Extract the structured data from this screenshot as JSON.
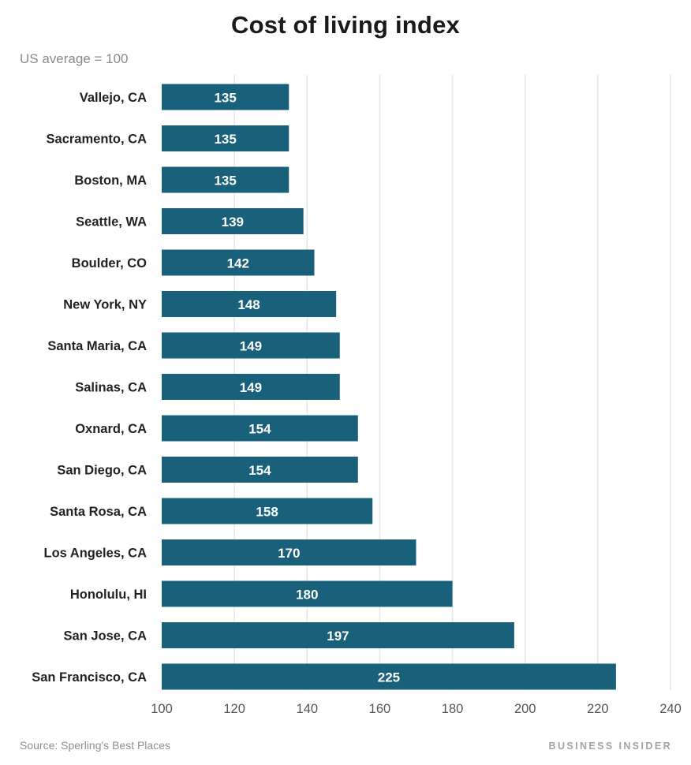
{
  "header": {
    "title": "Cost of living index",
    "subtitle": "US average = 100"
  },
  "footer": {
    "source": "Source: Sperling's Best Places",
    "brand": "BUSINESS INSIDER"
  },
  "colors": {
    "bar": "#19607a",
    "grid": "#e6e6e6",
    "value_text": "#ffffff"
  },
  "chart_data": {
    "type": "bar",
    "orientation": "horizontal",
    "title": "Cost of living index",
    "subtitle": "US average = 100",
    "xlabel": "",
    "ylabel": "",
    "xlim": [
      100,
      240
    ],
    "ticks": [
      100,
      120,
      140,
      160,
      180,
      200,
      220,
      240
    ],
    "grid": true,
    "categories": [
      "Vallejo, CA",
      "Sacramento, CA",
      "Boston, MA",
      "Seattle, WA",
      "Boulder, CO",
      "New York, NY",
      "Santa Maria, CA",
      "Salinas, CA",
      "Oxnard, CA",
      "San Diego, CA",
      "Santa Rosa, CA",
      "Los Angeles, CA",
      "Honolulu, HI",
      "San Jose, CA",
      "San Francisco, CA"
    ],
    "values": [
      135,
      135,
      135,
      139,
      142,
      148,
      149,
      149,
      154,
      154,
      158,
      170,
      180,
      197,
      225
    ]
  }
}
